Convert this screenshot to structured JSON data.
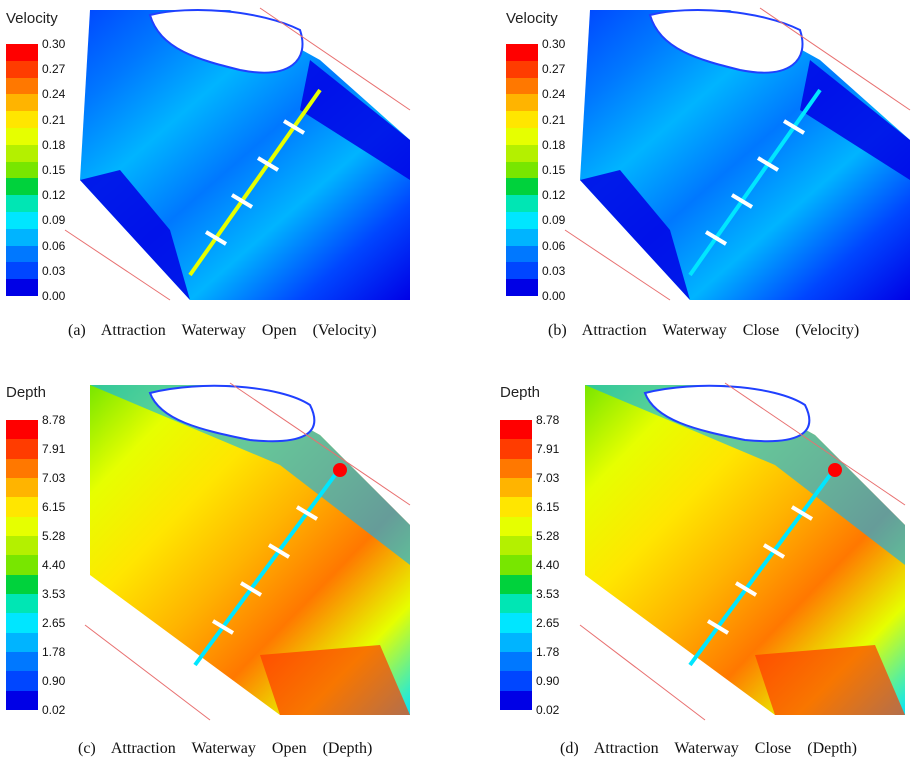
{
  "panels": [
    {
      "id": "a",
      "caption": "(a)  Attraction  Waterway  Open  (Velocity)",
      "legend_title": "Velocity",
      "legend_ticks": [
        "0.30",
        "0.27",
        "0.24",
        "0.21",
        "0.18",
        "0.15",
        "0.12",
        "0.09",
        "0.06",
        "0.03",
        "0.00"
      ],
      "variable": "velocity",
      "waterway": "open"
    },
    {
      "id": "b",
      "caption": "(b)  Attraction  Waterway  Close  (Velocity)",
      "legend_title": "Velocity",
      "legend_ticks": [
        "0.30",
        "0.27",
        "0.24",
        "0.21",
        "0.18",
        "0.15",
        "0.12",
        "0.09",
        "0.06",
        "0.03",
        "0.00"
      ],
      "variable": "velocity",
      "waterway": "close"
    },
    {
      "id": "c",
      "caption": "(c)  Attraction  Waterway  Open  (Depth)",
      "legend_title": "Depth",
      "legend_ticks": [
        "8.78",
        "7.91",
        "7.03",
        "6.15",
        "5.28",
        "4.40",
        "3.53",
        "2.65",
        "1.78",
        "0.90",
        "0.02"
      ],
      "variable": "depth",
      "waterway": "open"
    },
    {
      "id": "d",
      "caption": "(d)  Attraction  Waterway  Close  (Depth)",
      "legend_title": "Depth",
      "legend_ticks": [
        "8.78",
        "7.91",
        "7.03",
        "6.15",
        "5.28",
        "4.40",
        "3.53",
        "2.65",
        "1.78",
        "0.90",
        "0.02"
      ],
      "variable": "depth",
      "waterway": "close"
    }
  ],
  "colors": {
    "scale": [
      "#ff0000",
      "#ff3c00",
      "#ff7800",
      "#ffb400",
      "#ffe600",
      "#e6ff00",
      "#b4f000",
      "#78e600",
      "#00d23c",
      "#00e6b4",
      "#00e6ff",
      "#00b4ff",
      "#0078ff",
      "#0046ff",
      "#0000e6"
    ],
    "island": "#ffffff",
    "bank_line": "#e87070",
    "groyne": "#ffffff"
  }
}
